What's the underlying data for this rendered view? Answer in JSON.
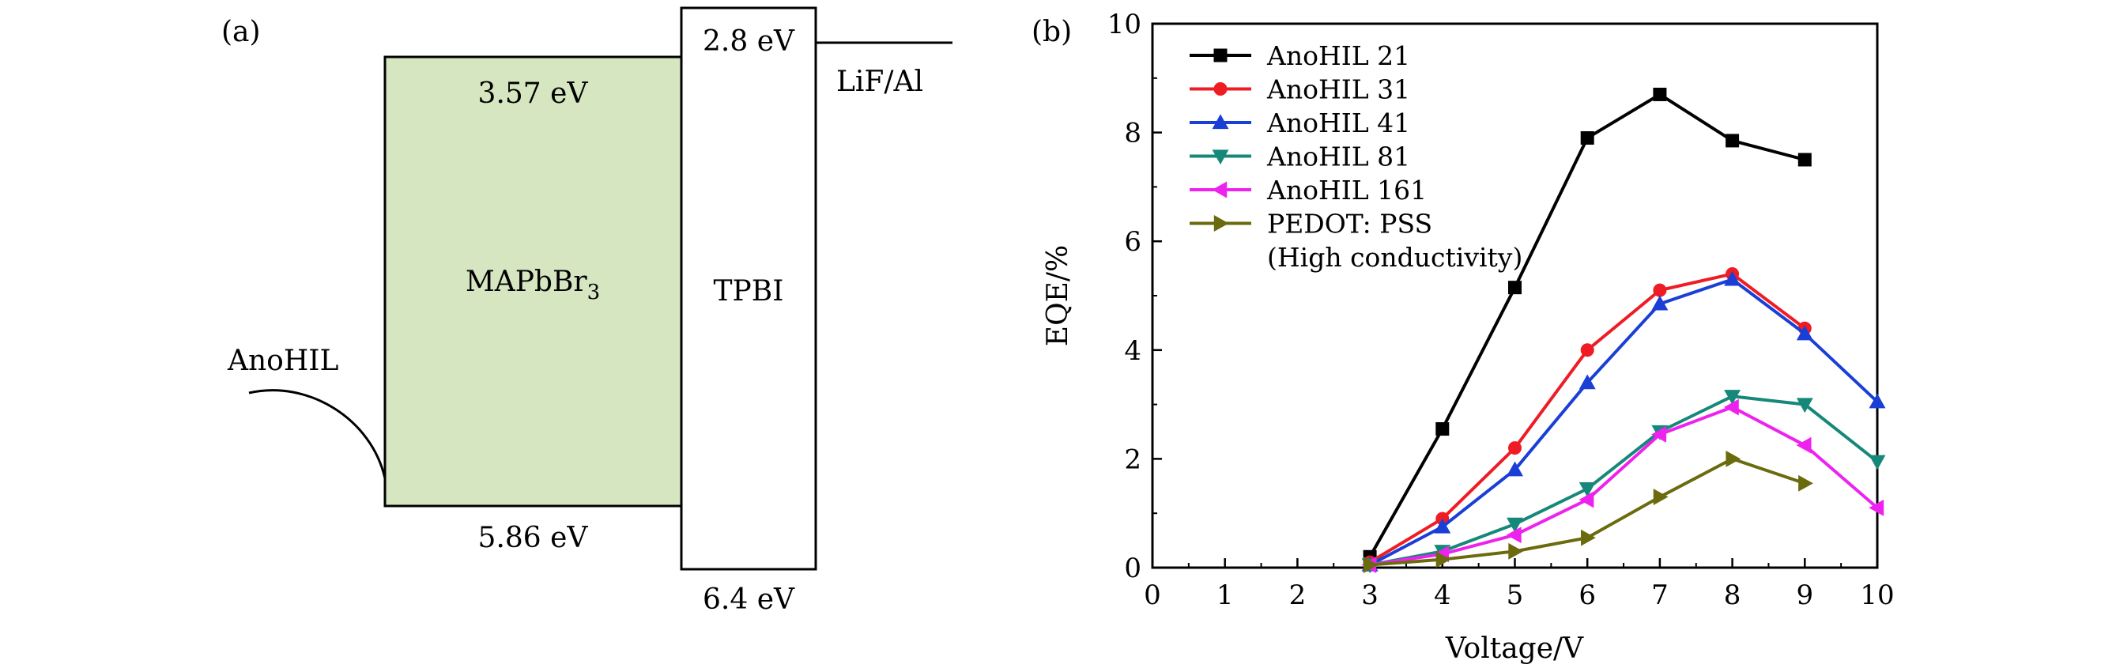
{
  "panel_a": {
    "label": "(a)",
    "hil_label": "AnoHIL",
    "perovskite": {
      "name_main": "MAPbBr",
      "name_sub": "3",
      "lumo": "3.57 eV",
      "homo": "5.86 eV",
      "fill": "#d6e6c1"
    },
    "tpbi": {
      "name": "TPBI",
      "lumo": "2.8 eV",
      "homo": "6.4 eV"
    },
    "cathode": "LiF/Al"
  },
  "chart_data": {
    "panel_label": "(b)",
    "type": "line",
    "xlabel": "Voltage/V",
    "ylabel": "EQE/%",
    "xlim": [
      0,
      10
    ],
    "ylim": [
      0,
      10
    ],
    "xticks": [
      "0",
      "1",
      "2",
      "3",
      "4",
      "5",
      "6",
      "7",
      "8",
      "9",
      "10"
    ],
    "yticks": [
      "0",
      "2",
      "4",
      "6",
      "8",
      "10"
    ],
    "grid": false,
    "legend_position": "top-left",
    "series": [
      {
        "name": "AnoHIL 21",
        "color": "#000000",
        "marker": "square",
        "x": [
          3,
          4,
          5,
          6,
          7,
          8,
          9
        ],
        "y": [
          0.2,
          2.55,
          5.15,
          7.9,
          8.7,
          7.85,
          7.5
        ]
      },
      {
        "name": "AnoHIL 31",
        "color": "#ee1c25",
        "marker": "circle",
        "x": [
          3,
          4,
          5,
          6,
          7,
          8,
          9
        ],
        "y": [
          0.1,
          0.9,
          2.2,
          4.0,
          5.1,
          5.4,
          4.4
        ]
      },
      {
        "name": "AnoHIL 41",
        "color": "#1a3fd6",
        "marker": "triangle-up",
        "x": [
          3,
          4,
          5,
          6,
          7,
          8,
          9,
          10
        ],
        "y": [
          0.05,
          0.75,
          1.8,
          3.4,
          4.85,
          5.3,
          4.3,
          3.05
        ]
      },
      {
        "name": "AnoHIL 81",
        "color": "#16887a",
        "marker": "triangle-down",
        "x": [
          3,
          4,
          5,
          6,
          7,
          8,
          9,
          10
        ],
        "y": [
          0.05,
          0.3,
          0.8,
          1.45,
          2.5,
          3.15,
          3.0,
          1.95
        ]
      },
      {
        "name": "AnoHIL 161",
        "color": "#ee22ee",
        "marker": "triangle-left",
        "x": [
          3,
          4,
          5,
          6,
          7,
          8,
          9,
          10
        ],
        "y": [
          0.05,
          0.25,
          0.6,
          1.25,
          2.45,
          2.95,
          2.25,
          1.1
        ]
      },
      {
        "name": "PEDOT: PSS",
        "name_line2": "(High conductivity)",
        "color": "#6b6b0e",
        "marker": "triangle-right",
        "x": [
          3,
          4,
          5,
          6,
          7,
          8,
          9
        ],
        "y": [
          0.05,
          0.15,
          0.3,
          0.55,
          1.3,
          2.0,
          1.55
        ]
      }
    ]
  }
}
